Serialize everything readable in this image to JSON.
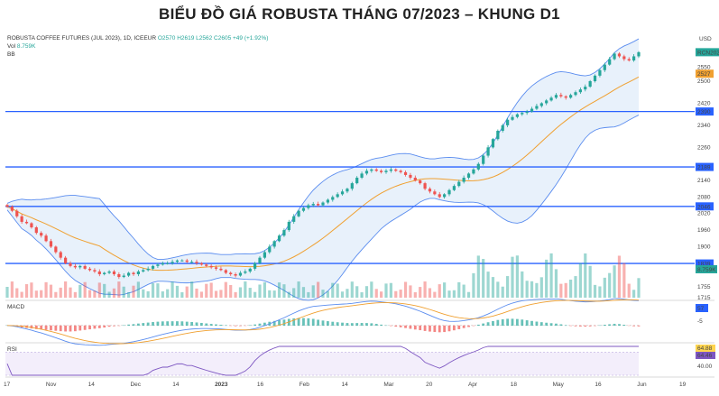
{
  "page_title": "BIỂU ĐỒ GIÁ ROBUSTA THÁNG 07/2023 – KHUNG D1",
  "header": {
    "symbol": "ROBUSTA COFFEE FUTURES (JUL 2023), 1D, ICEEUR",
    "ohlc": "O2570 H2619 L2562 C2605 +49 (+1.92%)",
    "vol_label": "Vol",
    "vol_value": "8.759K",
    "bb_label": "BB",
    "macd_label": "MACD",
    "rsi_label": "RSI",
    "currency": "USD"
  },
  "colors": {
    "up": "#26a69a",
    "down": "#ef5350",
    "bb_band": "#5b8def",
    "bb_fill": "#e8f1fb",
    "ma": "#f0a030",
    "hline": "#2962ff",
    "rsi_line": "#7e57c2"
  },
  "chart_data": [
    {
      "type": "candlestick",
      "title": "BIỂU ĐỒ GIÁ ROBUSTA THÁNG 07/2023 – KHUNG D1",
      "ylabel": "USD",
      "ylim": [
        1715,
        2670
      ],
      "y_ticks": [
        1715,
        1755,
        1820,
        1900,
        1960,
        2020,
        2080,
        2140,
        2200,
        2260,
        2340,
        2420,
        2500,
        2550,
        2600
      ],
      "x_tick_labels": [
        "17",
        "Nov",
        "14",
        "Dec",
        "14",
        "2023",
        "16",
        "Feb",
        "14",
        "Mar",
        "20",
        "Apr",
        "18",
        "May",
        "16",
        "Jun",
        "19"
      ],
      "horizontal_levels": [
        2390,
        2189,
        2046,
        1839
      ],
      "price_labels": [
        {
          "value": 2605,
          "text": "RCN2023"
        },
        {
          "value": 2527,
          "text": "2527"
        },
        {
          "value": 2390,
          "text": "2390"
        },
        {
          "value": 2189,
          "text": "2189"
        },
        {
          "value": 2046,
          "text": "2046"
        },
        {
          "value": 1839,
          "text": "1839"
        }
      ],
      "volume_label": "8.759K",
      "closes": [
        2045,
        2030,
        2010,
        1990,
        1985,
        1970,
        1950,
        1940,
        1920,
        1900,
        1880,
        1860,
        1840,
        1830,
        1825,
        1830,
        1820,
        1815,
        1810,
        1800,
        1805,
        1810,
        1800,
        1790,
        1795,
        1805,
        1800,
        1810,
        1815,
        1820,
        1830,
        1835,
        1840,
        1840,
        1845,
        1850,
        1850,
        1845,
        1845,
        1840,
        1835,
        1830,
        1825,
        1820,
        1815,
        1805,
        1800,
        1795,
        1805,
        1810,
        1820,
        1840,
        1860,
        1880,
        1900,
        1920,
        1940,
        1960,
        1990,
        2010,
        2030,
        2040,
        2050,
        2055,
        2050,
        2060,
        2070,
        2080,
        2090,
        2100,
        2110,
        2130,
        2150,
        2165,
        2175,
        2180,
        2175,
        2170,
        2175,
        2180,
        2175,
        2170,
        2160,
        2150,
        2140,
        2130,
        2110,
        2100,
        2090,
        2080,
        2090,
        2105,
        2120,
        2135,
        2150,
        2165,
        2180,
        2200,
        2230,
        2260,
        2290,
        2320,
        2340,
        2360,
        2370,
        2380,
        2385,
        2390,
        2400,
        2410,
        2420,
        2430,
        2440,
        2450,
        2445,
        2440,
        2450,
        2460,
        2470,
        2480,
        2500,
        2520,
        2540,
        2560,
        2580,
        2600,
        2590,
        2580,
        2575,
        2590,
        2605
      ],
      "macd": {
        "ylim": [
          -40,
          60
        ],
        "value_labels": [
          "57",
          "-5"
        ]
      },
      "rsi": {
        "ylim": [
          30,
          80
        ],
        "value_labels": [
          "64.88",
          "64.46"
        ],
        "guide_label": "40.00"
      }
    }
  ]
}
